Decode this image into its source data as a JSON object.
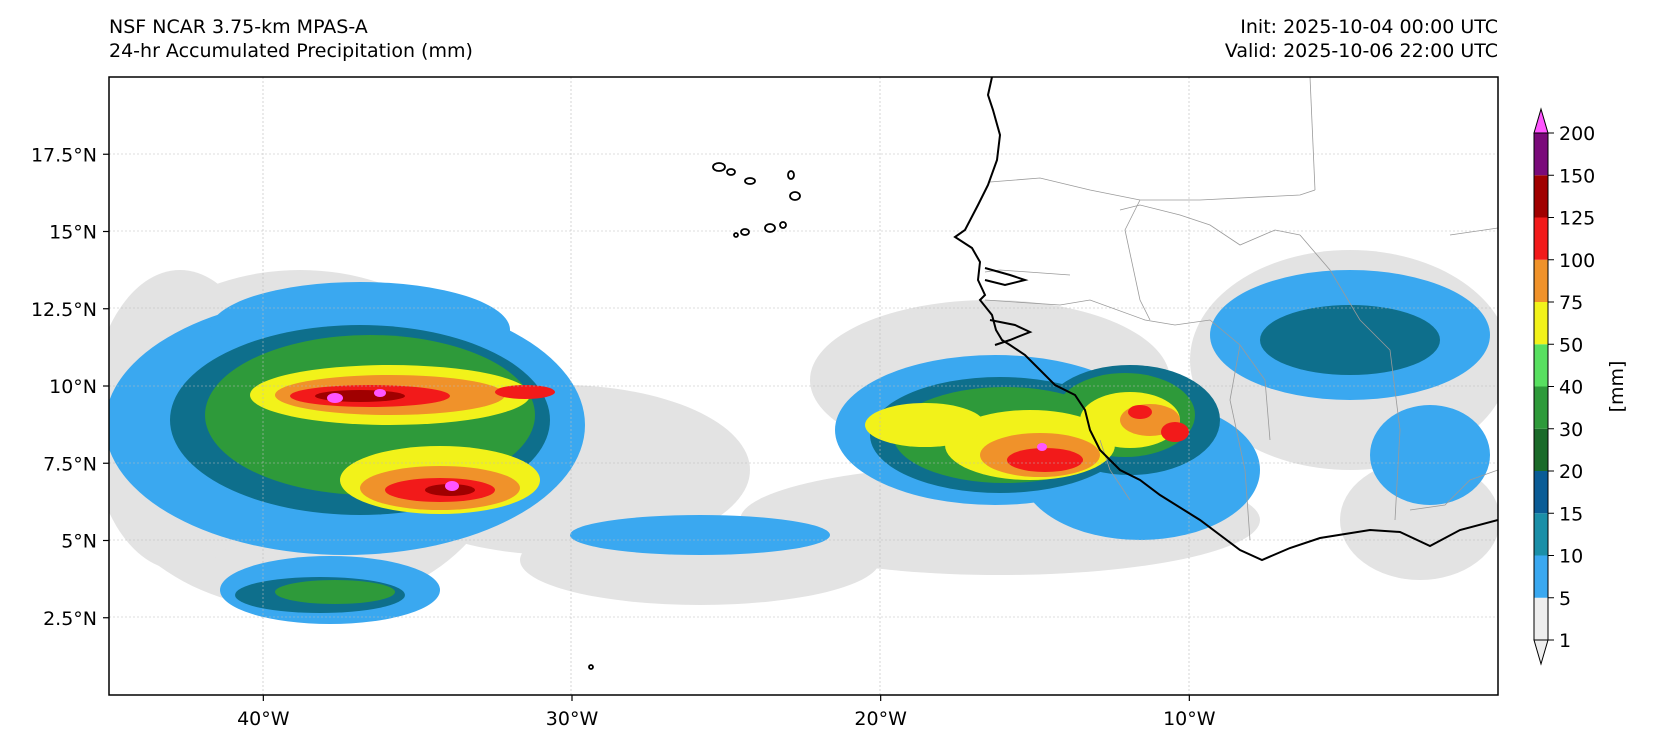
{
  "header": {
    "model_title": "NSF NCAR 3.75-km MPAS-A",
    "field_title": "24-hr Accumulated Precipitation (mm)",
    "init_time": "Init: 2025-10-04 00:00 UTC",
    "valid_time": "Valid: 2025-10-06 22:00 UTC"
  },
  "map": {
    "lon_range": [
      -45,
      0
    ],
    "lat_range": [
      0,
      20
    ],
    "x_ticks": [
      {
        "lon": -40,
        "label": "40°W"
      },
      {
        "lon": -30,
        "label": "30°W"
      },
      {
        "lon": -20,
        "label": "20°W"
      },
      {
        "lon": -10,
        "label": "10°W"
      }
    ],
    "y_ticks": [
      {
        "lat": 17.5,
        "label": "17.5°N"
      },
      {
        "lat": 15,
        "label": "15°N"
      },
      {
        "lat": 12.5,
        "label": "12.5°N"
      },
      {
        "lat": 10,
        "label": "10°N"
      },
      {
        "lat": 7.5,
        "label": "7.5°N"
      },
      {
        "lat": 5,
        "label": "5°N"
      },
      {
        "lat": 2.5,
        "label": "2.5°N"
      }
    ],
    "gridlines": true
  },
  "colorbar": {
    "unit_label": "[mm]",
    "levels": [
      "1",
      "5",
      "10",
      "15",
      "20",
      "30",
      "40",
      "50",
      "75",
      "100",
      "125",
      "150",
      "200"
    ],
    "colors": [
      "#eeeeee",
      "#3aa8f0",
      "#1b8fa8",
      "#0a5c96",
      "#1b6b2a",
      "#2e9a3a",
      "#58e060",
      "#f2f21a",
      "#f0922a",
      "#f21a1a",
      "#a00000",
      "#7a0a7a",
      "#ff55ff"
    ],
    "extend": "both"
  }
}
